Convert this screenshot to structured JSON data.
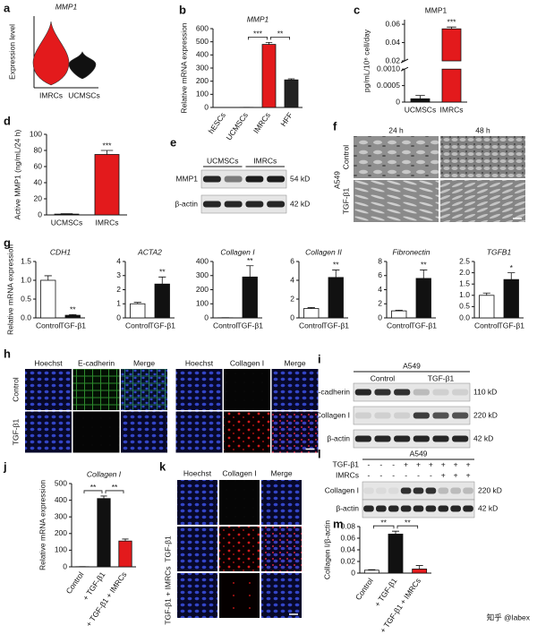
{
  "chart_data": [
    {
      "type": "violin",
      "panel": "a",
      "title": "MMP1",
      "ylabel": "Expression level",
      "categories": [
        "IMRCs",
        "UCMSCs"
      ],
      "colors": [
        "#e31a1c",
        "#111111"
      ]
    },
    {
      "type": "bar",
      "panel": "b",
      "title": "MMP1",
      "ylabel": "Relative mRNA expression",
      "categories": [
        "hESCs",
        "UCMSCs",
        "IMRCs",
        "HFF"
      ],
      "values": [
        0,
        1,
        480,
        210
      ],
      "errors": [
        0,
        0,
        15,
        8
      ],
      "colors": [
        "#ffffff",
        "#ffffff",
        "#e31a1c",
        "#222222"
      ],
      "ylim": [
        0,
        600
      ],
      "yticks": [
        0,
        100,
        200,
        300,
        400,
        500,
        600
      ],
      "annotations": [
        "***",
        "**"
      ]
    },
    {
      "type": "broken_bar",
      "panel": "c",
      "title": "MMP1",
      "ylabel": "pg/mL/10⁶ cell/day",
      "categories": [
        "UCMSCs",
        "IMRCs"
      ],
      "values": [
        0.0001,
        0.055
      ],
      "errors": [
        0.0001,
        0.002
      ],
      "colors": [
        "#111111",
        "#e31a1c"
      ],
      "ylim_lower": [
        0,
        0.001
      ],
      "ylim_upper": [
        0.02,
        0.065
      ],
      "yticks": [
        0,
        0.0005,
        {
          "value": 0.001,
          "label": "0.0010"
        },
        0.02,
        0.04,
        0.06
      ],
      "annotations": [
        "***"
      ]
    },
    {
      "type": "bar",
      "panel": "d",
      "ylabel": "Active MMP1 (ng/mL/24 h)",
      "categories": [
        "UCMSCs",
        "IMRCs"
      ],
      "values": [
        1,
        75
      ],
      "errors": [
        0.5,
        5
      ],
      "colors": [
        "#111111",
        "#e31a1c"
      ],
      "ylim": [
        0,
        100
      ],
      "yticks": [
        0,
        20,
        40,
        60,
        80,
        100
      ],
      "annotations": [
        "***"
      ]
    },
    {
      "type": "bar",
      "panel": "g",
      "title": "CDH1",
      "ylabel": "Relative mRNA expression",
      "categories": [
        "Control",
        "TGF-β1"
      ],
      "values": [
        1.0,
        0.07
      ],
      "errors": [
        0.12,
        0.02
      ],
      "colors": [
        "#ffffff",
        "#111111"
      ],
      "ylim": [
        0,
        1.5
      ],
      "yticks": [
        {
          "value": 0,
          "label": "0.0"
        },
        0.5,
        {
          "value": 1,
          "label": "1.0"
        },
        1.5
      ],
      "annotations": [
        "**"
      ]
    },
    {
      "type": "bar",
      "title": "ACTA2",
      "categories": [
        "Control",
        "TGF-β1"
      ],
      "values": [
        1,
        2.4
      ],
      "errors": [
        0.1,
        0.5
      ],
      "colors": [
        "#ffffff",
        "#111111"
      ],
      "ylim": [
        0,
        4
      ],
      "yticks": [
        0,
        1,
        2,
        3,
        4
      ],
      "annotations": [
        "**"
      ]
    },
    {
      "type": "bar",
      "title": "Collagen I",
      "categories": [
        "Control",
        "TGF-β1"
      ],
      "values": [
        1,
        290
      ],
      "errors": [
        0.5,
        80
      ],
      "colors": [
        "#ffffff",
        "#111111"
      ],
      "ylim": [
        0,
        400
      ],
      "yticks": [
        0,
        100,
        200,
        300,
        400
      ],
      "annotations": [
        "**"
      ]
    },
    {
      "type": "bar",
      "title": "Collagen II",
      "categories": [
        "Control",
        "TGF-β1"
      ],
      "values": [
        1,
        4.3
      ],
      "errors": [
        0.1,
        0.8
      ],
      "colors": [
        "#ffffff",
        "#111111"
      ],
      "ylim": [
        0,
        6
      ],
      "yticks": [
        0,
        2,
        4,
        6
      ],
      "annotations": [
        "**"
      ]
    },
    {
      "type": "bar",
      "title": "Fibronectin",
      "categories": [
        "Control",
        "TGF-β1"
      ],
      "values": [
        1,
        5.6
      ],
      "errors": [
        0.1,
        1.2
      ],
      "colors": [
        "#ffffff",
        "#111111"
      ],
      "ylim": [
        0,
        8
      ],
      "yticks": [
        0,
        2,
        4,
        6,
        8
      ],
      "annotations": [
        "**"
      ]
    },
    {
      "type": "bar",
      "title": "TGFB1",
      "categories": [
        "Control",
        "TGF-β1"
      ],
      "values": [
        1,
        1.7
      ],
      "errors": [
        0.1,
        0.3
      ],
      "colors": [
        "#ffffff",
        "#111111"
      ],
      "ylim": [
        0,
        2.5
      ],
      "yticks": [
        {
          "value": 0,
          "label": "0.0"
        },
        0.5,
        {
          "value": 1,
          "label": "1.0"
        },
        1.5,
        {
          "value": 2,
          "label": "2.0"
        },
        2.5
      ],
      "annotations": [
        "*"
      ]
    },
    {
      "type": "bar",
      "panel": "j",
      "title": "Collagen I",
      "ylabel": "Relative mRNA expression",
      "categories": [
        "Control",
        "+ TGF-β1",
        "+ TGF-β1 + IMRCs"
      ],
      "values": [
        1,
        410,
        155
      ],
      "errors": [
        0.5,
        15,
        12
      ],
      "colors": [
        "#ffffff",
        "#111111",
        "#e31a1c"
      ],
      "ylim": [
        0,
        500
      ],
      "yticks": [
        0,
        100,
        200,
        300,
        400,
        500
      ],
      "annotations": [
        "**",
        "**"
      ]
    },
    {
      "type": "bar",
      "panel": "m",
      "ylabel": "Collagen I/β-actin",
      "categories": [
        "Control",
        "+ TGF-β1",
        "+ TGF-β1 + IMRCs"
      ],
      "values": [
        0.005,
        0.067,
        0.007
      ],
      "errors": [
        0.001,
        0.005,
        0.006
      ],
      "colors": [
        "#ffffff",
        "#111111",
        "#e31a1c"
      ],
      "ylim": [
        0,
        0.08
      ],
      "yticks": [
        0,
        0.02,
        0.04,
        0.06,
        0.08
      ],
      "annotations": [
        "**",
        "**"
      ]
    }
  ],
  "blots": [
    {
      "panel": "e",
      "groups": [
        "UCMSCs",
        "IMRCs"
      ],
      "rows": [
        "MMP1",
        "β-actin"
      ],
      "sizes": [
        "54 kD",
        "42 kD"
      ]
    },
    {
      "panel": "i",
      "title": "A549",
      "groups": [
        "Control",
        "TGF-β1"
      ],
      "rows": [
        "E-cadherin",
        "Collagen I",
        "β-actin"
      ],
      "sizes": [
        "110 kD",
        "220 kD",
        "42 kD"
      ]
    },
    {
      "panel": "l",
      "title": "A549",
      "conditions": [
        {
          "label": "TGF-β1",
          "signs": [
            "-",
            "-",
            "-",
            "+",
            "+",
            "+",
            "+",
            "+",
            "+"
          ]
        },
        {
          "label": "IMRCs",
          "signs": [
            "-",
            "-",
            "-",
            "-",
            "-",
            "-",
            "+",
            "+",
            "+"
          ]
        }
      ],
      "rows": [
        "Collagen I",
        "β-actin"
      ],
      "sizes": [
        "220 kD",
        "42 kD"
      ]
    }
  ],
  "images": [
    {
      "panel": "f",
      "group": "A549",
      "columns": [
        "24 h",
        "48 h"
      ],
      "rows": [
        "Control",
        "TGF-β1"
      ]
    },
    {
      "panel": "h",
      "columns": [
        "Hoechst",
        "E-cadherin",
        "Merge",
        "Hoechst",
        "Collagen I",
        "Merge"
      ],
      "rows": [
        "Control",
        "TGF-β1"
      ]
    },
    {
      "panel": "k",
      "columns": [
        "Hoechst",
        "Collagen I",
        "Merge"
      ],
      "rows": [
        "TGF-β1",
        "TGF-β1 + IMRCs"
      ]
    }
  ],
  "watermark": "知乎 @labex"
}
